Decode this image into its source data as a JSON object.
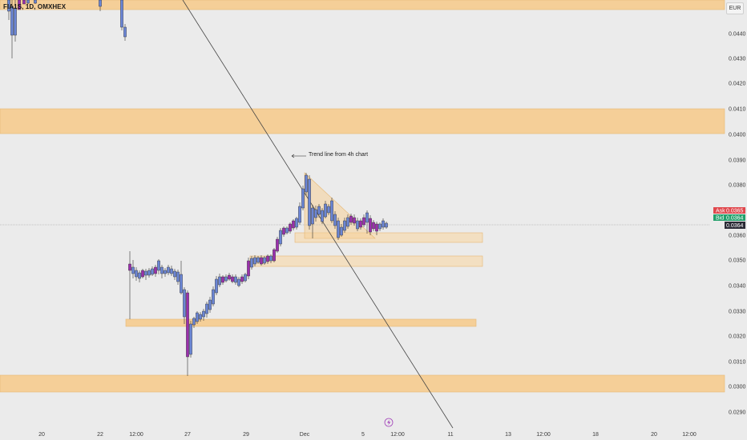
{
  "header": {
    "symbol": "FIA1S, 1D, OMXHEX",
    "currency": "EUR"
  },
  "annotation": {
    "text": "Trend line from 4h chart"
  },
  "price_axis": {
    "labels": [
      "0.0440",
      "0.0430",
      "0.0420",
      "0.0410",
      "0.0400",
      "0.0390",
      "0.0380",
      "0.0370",
      "0.0360",
      "0.0350",
      "0.0340",
      "0.0330",
      "0.0320",
      "0.0310",
      "0.0300",
      "0.0290"
    ]
  },
  "price_badges": {
    "ask_label": "Ask",
    "ask_value": "0.0365",
    "bid_label": "Bid",
    "bid_value": "0.0364",
    "last_value": "0.0364"
  },
  "time_axis": {
    "labels": [
      "20",
      "22",
      "12:00",
      "27",
      "29",
      "Dec",
      "5",
      "12:00",
      "11",
      "13",
      "12:00",
      "18",
      "20",
      "12:00"
    ]
  },
  "colors": {
    "background": "#ebebeb",
    "zone_fill": "#f5cf98",
    "zone_stroke": "#e6b774",
    "up_candle": "#6b86d6",
    "down_candle": "#9b2fae",
    "ask": "#e0474c",
    "bid": "#22a06b",
    "last": "#2b2b36"
  },
  "icons": {
    "flash": "lightning-icon",
    "arrow": "left-arrow-icon"
  }
}
